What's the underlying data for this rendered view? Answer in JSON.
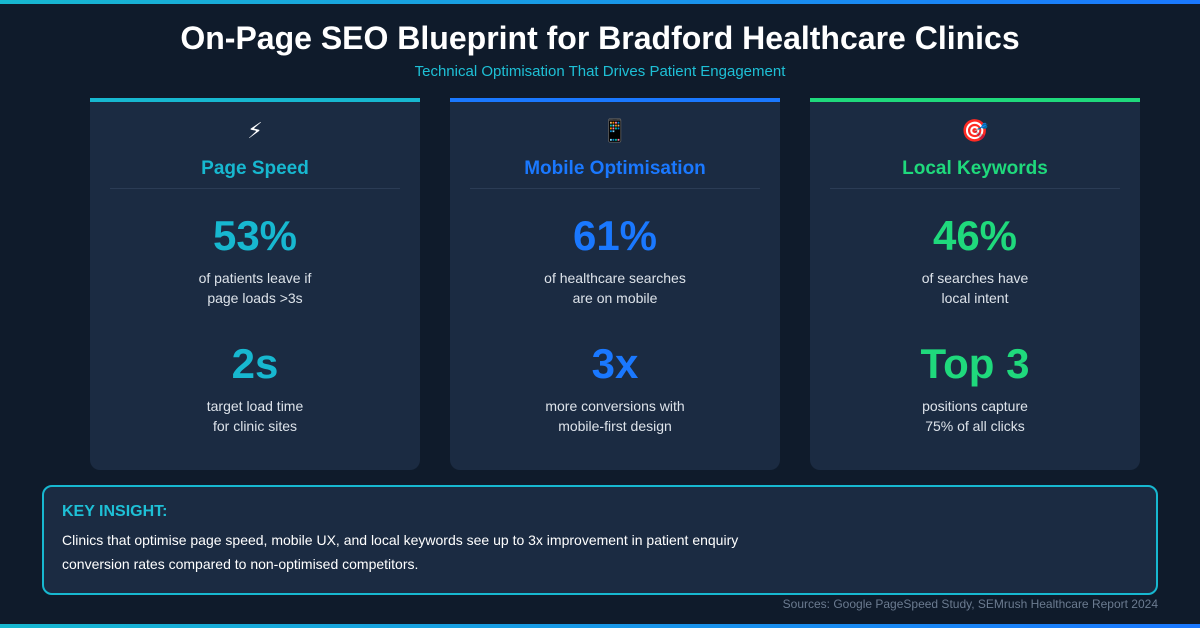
{
  "header": {
    "title": "On-Page SEO Blueprint for Bradford Healthcare Clinics",
    "subtitle": "Technical Optimisation That Drives Patient Engagement"
  },
  "cards": [
    {
      "icon": "⚡",
      "title": "Page Speed",
      "accent": "#17b8d0",
      "stats": [
        {
          "value": "53%",
          "label": [
            "of patients leave if",
            "page loads >3s"
          ]
        },
        {
          "value": "2s",
          "label": [
            "target load time",
            "for clinic sites"
          ]
        }
      ]
    },
    {
      "icon": "📱",
      "title": "Mobile Optimisation",
      "accent": "#1a78ff",
      "stats": [
        {
          "value": "61%",
          "label": [
            "of healthcare searches",
            "are on mobile"
          ]
        },
        {
          "value": "3x",
          "label": [
            "more conversions with",
            "mobile-first design"
          ]
        }
      ]
    },
    {
      "icon": "🎯",
      "title": "Local Keywords",
      "accent": "#1fd97c",
      "stats": [
        {
          "value": "46%",
          "label": [
            "of searches have",
            "local intent"
          ]
        },
        {
          "value": "Top 3",
          "label": [
            "positions capture",
            "75% of all clicks"
          ]
        }
      ]
    }
  ],
  "insight": {
    "heading": "KEY INSIGHT:",
    "text": [
      "Clinics that optimise page speed, mobile UX, and local keywords see up to 3x improvement in patient enquiry",
      "conversion rates compared to non-optimised competitors."
    ]
  },
  "source": "Sources: Google PageSpeed Study, SEMrush Healthcare Report 2024"
}
